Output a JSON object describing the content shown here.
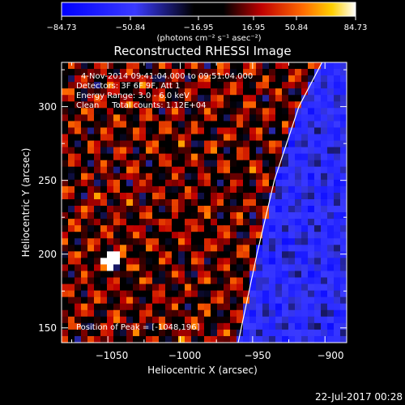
{
  "chart_data": {
    "type": "heatmap",
    "title": "Reconstructed RHESSI Image",
    "xlabel": "Heliocentric X (arcsec)",
    "ylabel": "Heliocentric Y (arcsec)",
    "xlim": [
      -1082,
      -885
    ],
    "ylim": [
      140,
      330
    ],
    "x_ticks": [
      -1050,
      -1000,
      -950,
      -900
    ],
    "x_tick_labels": [
      "−1050",
      "−1000",
      "−950",
      "−900"
    ],
    "y_ticks": [
      150,
      200,
      250,
      300
    ],
    "y_tick_labels": [
      "150",
      "200",
      "250",
      "300"
    ],
    "colorbar": {
      "tick_labels": [
        "−84.73",
        "−50.84",
        "−16.95",
        "16.95",
        "50.84",
        "84.73"
      ],
      "unit_label": "(photons cm⁻² s⁻¹ asec⁻²)",
      "range": [
        -84.73,
        84.73
      ]
    },
    "annotations": [
      "4-Nov-2014 09:41:04.000 to 09:51:04.000",
      "Detectors: 3F 6F 9F, Att 1",
      "Energy Range: 3.0 - 6.0 keV",
      "Clean     Total counts: 1.12E+04"
    ],
    "peak_label": "Position of Peak = [-1048,196]",
    "peak": [
      -1048,
      196
    ],
    "limb_curve": [
      [
        -960,
        140
      ],
      [
        -947,
        200
      ],
      [
        -935,
        250
      ],
      [
        -918,
        300
      ],
      [
        -902,
        330
      ]
    ],
    "colors": {
      "low": "#0000ff",
      "mid": "#000000",
      "high": "#ffffff",
      "limb": "#ffffff"
    }
  },
  "footer": {
    "timestamp": "22-Jul-2017 00:28"
  }
}
